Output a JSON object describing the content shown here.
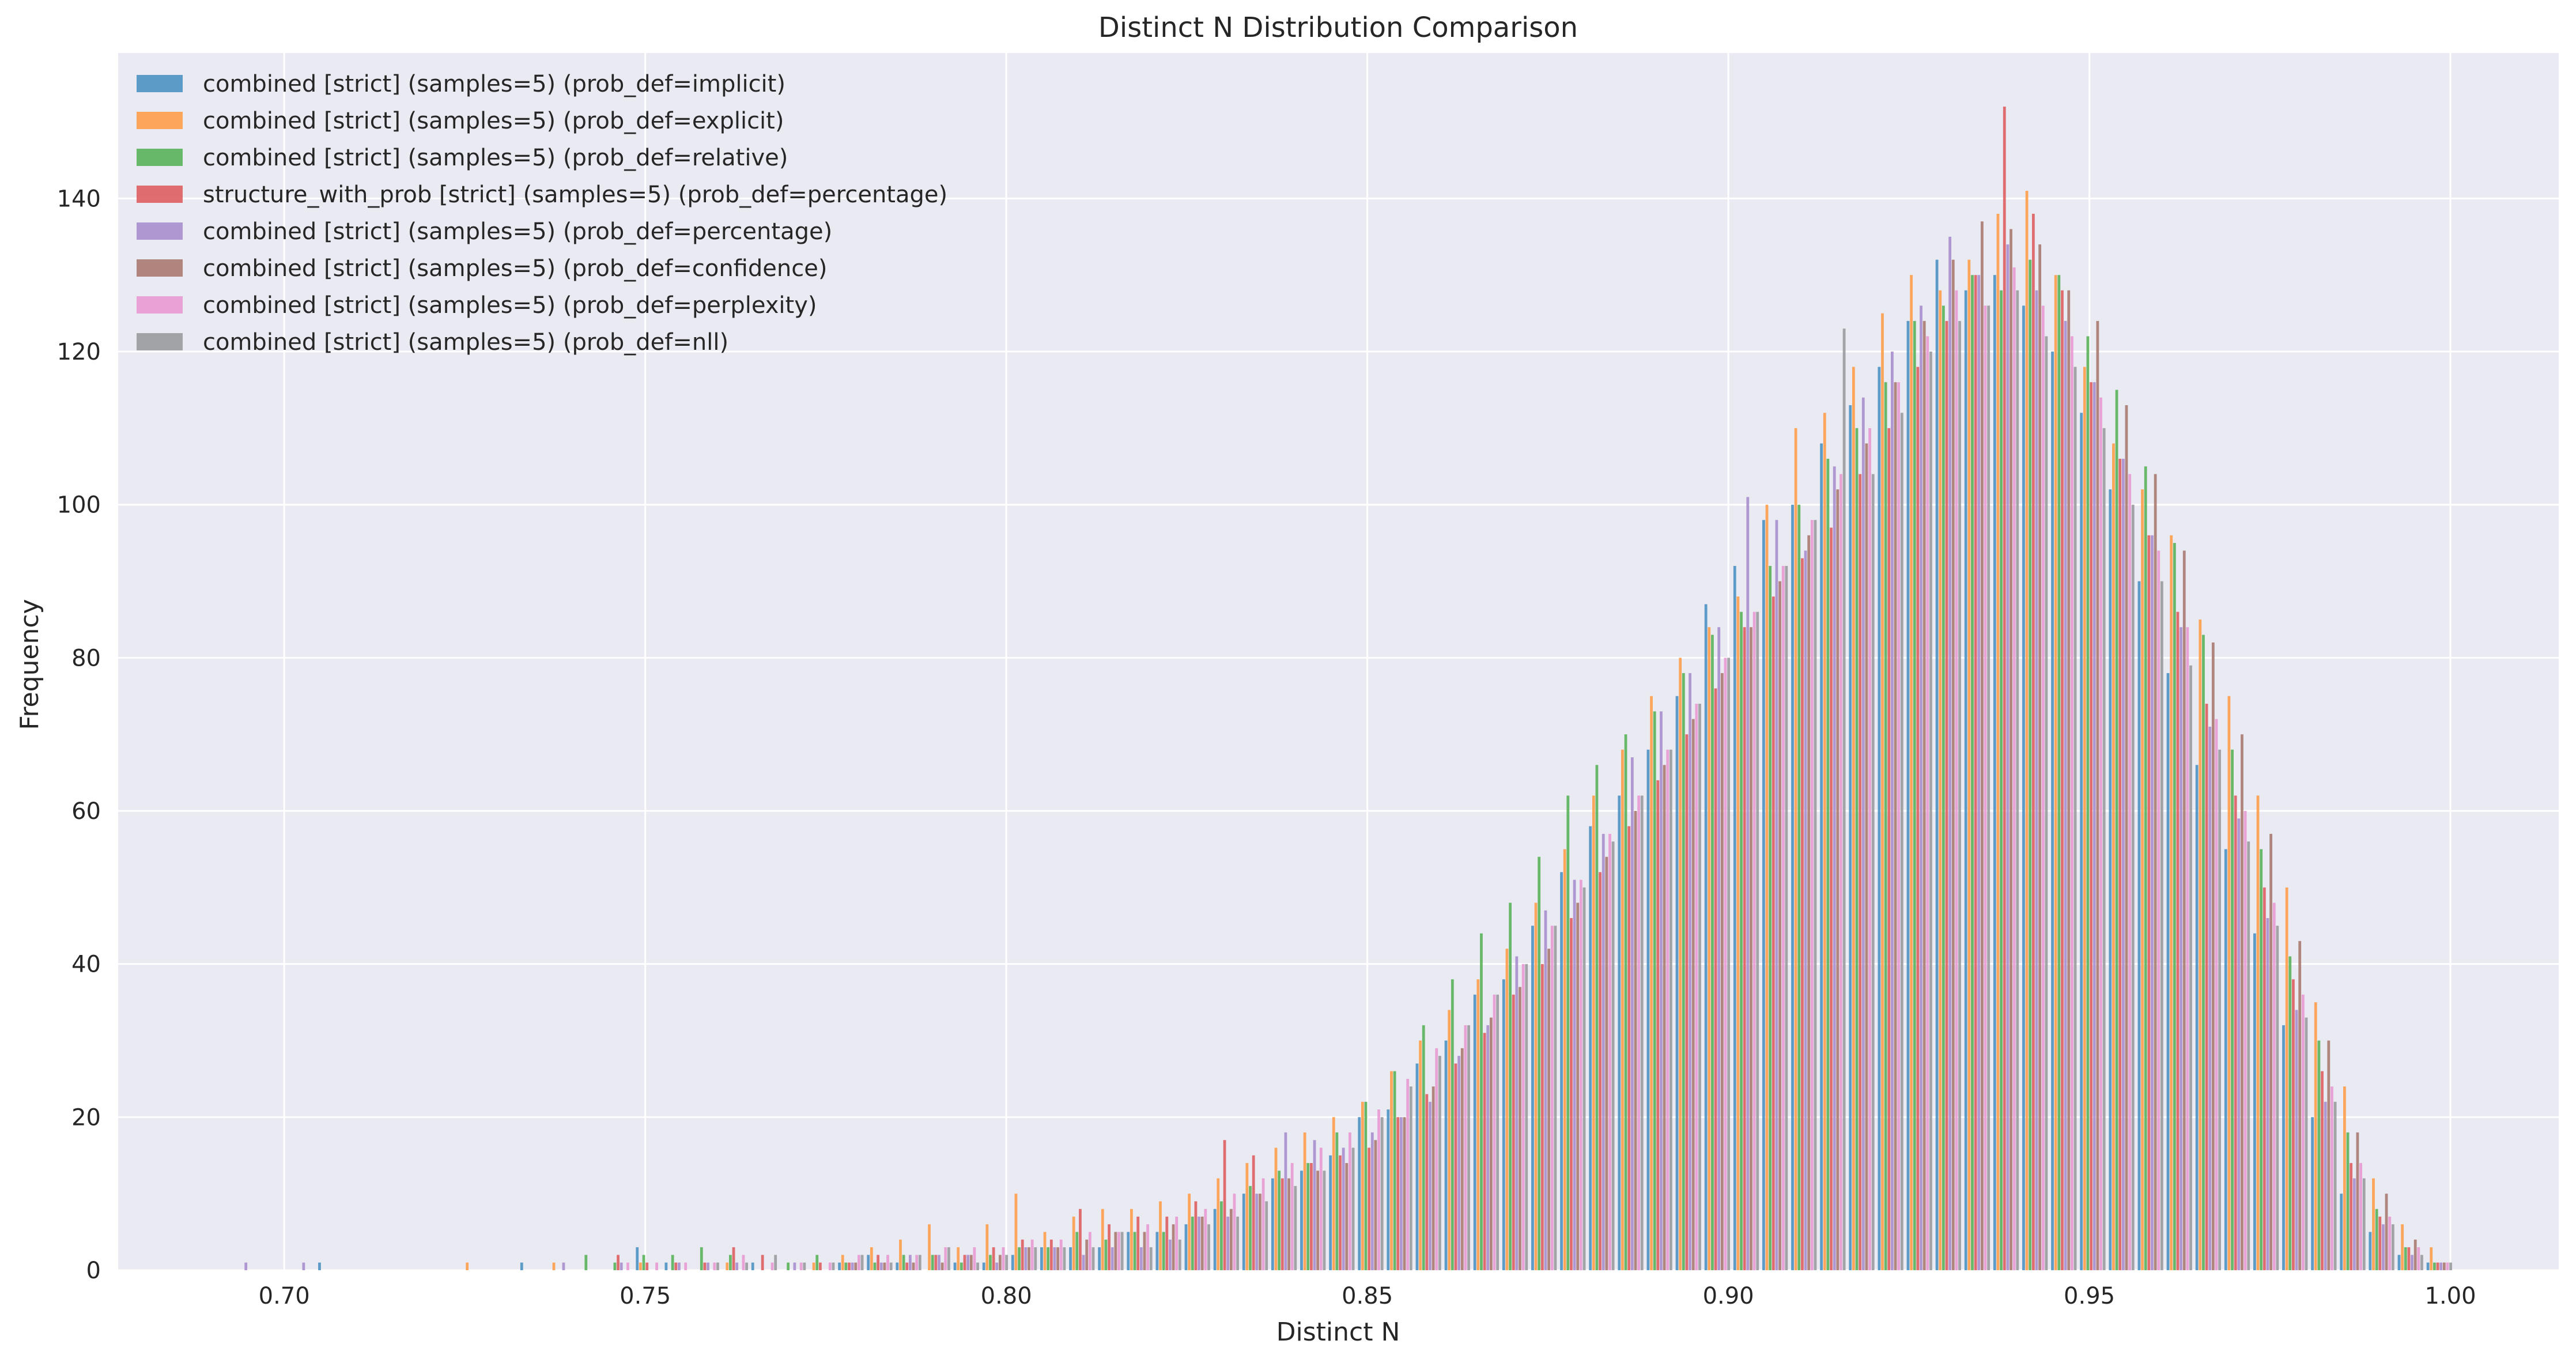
{
  "chart_data": {
    "type": "bar",
    "title": "Distinct N Distribution Comparison",
    "xlabel": "Distinct N",
    "ylabel": "Frequency",
    "xlim": [
      0.677,
      1.015
    ],
    "ylim": [
      0,
      159
    ],
    "xticks": [
      "0.70",
      "0.75",
      "0.80",
      "0.85",
      "0.90",
      "0.95",
      "1.00"
    ],
    "yticks": [
      "0",
      "20",
      "40",
      "60",
      "80",
      "100",
      "120",
      "140"
    ],
    "grid": true,
    "legend_position": "top-left",
    "bin_centers": [
      0.6945,
      0.6985,
      0.7025,
      0.7065,
      0.7105,
      0.7145,
      0.7185,
      0.7225,
      0.7265,
      0.7305,
      0.7345,
      0.7385,
      0.7425,
      0.7465,
      0.7505,
      0.7545,
      0.7585,
      0.7625,
      0.7665,
      0.7705,
      0.7745,
      0.7785,
      0.7825,
      0.7865,
      0.7905,
      0.7945,
      0.7985,
      0.8025,
      0.8065,
      0.8105,
      0.8145,
      0.8185,
      0.8225,
      0.8265,
      0.8305,
      0.8345,
      0.8385,
      0.8425,
      0.8465,
      0.8505,
      0.8545,
      0.8585,
      0.8625,
      0.8665,
      0.8705,
      0.8745,
      0.8785,
      0.8825,
      0.8865,
      0.8905,
      0.8945,
      0.8985,
      0.9025,
      0.9065,
      0.9105,
      0.9145,
      0.9185,
      0.9225,
      0.9265,
      0.9305,
      0.9345,
      0.9385,
      0.9425,
      0.9465,
      0.9505,
      0.9545,
      0.9585,
      0.9625,
      0.9665,
      0.9705,
      0.9745,
      0.9785,
      0.9825,
      0.9865,
      0.9905,
      0.9945,
      0.9985
    ],
    "bar_group_width": 0.0036,
    "series": [
      {
        "name": "combined [strict] (samples=5) (prob_def=implicit)",
        "color": "#4c92c3",
        "values": [
          0,
          0,
          0,
          1,
          0,
          0,
          0,
          0,
          0,
          0,
          1,
          0,
          0,
          0,
          3,
          1,
          0,
          0,
          1,
          0,
          0,
          1,
          2,
          1,
          0,
          1,
          1,
          2,
          3,
          3,
          3,
          5,
          5,
          6,
          8,
          10,
          12,
          13,
          15,
          20,
          21,
          27,
          30,
          36,
          38,
          45,
          52,
          58,
          62,
          68,
          75,
          87,
          92,
          98,
          100,
          108,
          113,
          118,
          124,
          132,
          128,
          130,
          126,
          120,
          112,
          102,
          90,
          78,
          66,
          55,
          44,
          32,
          20,
          10,
          5,
          2,
          1
        ]
      },
      {
        "name": "combined [strict] (samples=5) (prob_def=explicit)",
        "color": "#ff9f4a",
        "values": [
          0,
          0,
          0,
          0,
          0,
          0,
          0,
          0,
          1,
          0,
          0,
          1,
          0,
          0,
          1,
          0,
          0,
          1,
          0,
          0,
          1,
          2,
          3,
          4,
          6,
          3,
          6,
          10,
          5,
          7,
          8,
          8,
          9,
          10,
          12,
          14,
          16,
          18,
          20,
          22,
          26,
          30,
          34,
          38,
          42,
          48,
          55,
          62,
          68,
          75,
          80,
          84,
          88,
          100,
          110,
          112,
          118,
          125,
          130,
          128,
          132,
          138,
          141,
          130,
          118,
          108,
          102,
          96,
          85,
          75,
          62,
          50,
          35,
          24,
          12,
          6,
          3
        ]
      },
      {
        "name": "combined [strict] (samples=5) (prob_def=relative)",
        "color": "#5ab35a",
        "values": [
          0,
          0,
          0,
          0,
          0,
          0,
          0,
          0,
          0,
          0,
          0,
          0,
          2,
          1,
          2,
          2,
          3,
          2,
          0,
          1,
          2,
          1,
          1,
          2,
          2,
          1,
          2,
          3,
          3,
          5,
          4,
          5,
          5,
          7,
          9,
          11,
          13,
          14,
          18,
          22,
          26,
          32,
          38,
          44,
          48,
          54,
          62,
          66,
          70,
          73,
          78,
          83,
          86,
          92,
          100,
          106,
          110,
          116,
          124,
          126,
          130,
          128,
          132,
          130,
          122,
          115,
          105,
          95,
          83,
          68,
          55,
          41,
          30,
          18,
          8,
          3,
          1
        ]
      },
      {
        "name": "structure_with_prob [strict] (samples=5) (prob_def=percentage)",
        "color": "#de5f60",
        "values": [
          0,
          0,
          0,
          0,
          0,
          0,
          0,
          0,
          0,
          0,
          0,
          0,
          0,
          2,
          1,
          1,
          1,
          3,
          2,
          0,
          1,
          1,
          2,
          1,
          2,
          2,
          3,
          4,
          4,
          8,
          6,
          7,
          7,
          9,
          17,
          15,
          12,
          14,
          15,
          16,
          20,
          23,
          27,
          31,
          36,
          40,
          46,
          52,
          58,
          64,
          70,
          76,
          84,
          88,
          93,
          97,
          104,
          110,
          118,
          124,
          130,
          152,
          138,
          128,
          116,
          106,
          96,
          86,
          74,
          62,
          50,
          38,
          26,
          14,
          7,
          3,
          1
        ]
      },
      {
        "name": "combined [strict] (samples=5) (prob_def=percentage)",
        "color": "#a98fcd",
        "values": [
          1,
          0,
          1,
          0,
          0,
          0,
          0,
          0,
          0,
          0,
          0,
          1,
          0,
          1,
          0,
          1,
          1,
          1,
          0,
          1,
          0,
          1,
          1,
          2,
          2,
          2,
          1,
          3,
          3,
          2,
          3,
          3,
          4,
          7,
          7,
          10,
          18,
          17,
          16,
          18,
          20,
          22,
          28,
          32,
          41,
          47,
          51,
          57,
          67,
          73,
          78,
          84,
          101,
          98,
          94,
          105,
          114,
          120,
          126,
          135,
          130,
          134,
          128,
          124,
          116,
          106,
          96,
          84,
          71,
          59,
          46,
          34,
          22,
          12,
          6,
          2,
          1
        ]
      },
      {
        "name": "combined [strict] (samples=5) (prob_def=confidence)",
        "color": "#a87a70",
        "values": [
          0,
          0,
          0,
          0,
          0,
          0,
          0,
          0,
          0,
          0,
          0,
          0,
          0,
          0,
          0,
          0,
          0,
          0,
          0,
          0,
          0,
          1,
          1,
          1,
          1,
          2,
          2,
          3,
          3,
          4,
          5,
          5,
          6,
          7,
          8,
          10,
          12,
          13,
          14,
          17,
          20,
          24,
          29,
          33,
          37,
          42,
          48,
          54,
          60,
          66,
          72,
          78,
          84,
          90,
          96,
          102,
          108,
          116,
          124,
          132,
          137,
          136,
          134,
          128,
          124,
          113,
          104,
          94,
          82,
          70,
          57,
          43,
          30,
          18,
          10,
          4,
          1
        ]
      },
      {
        "name": "combined [strict] (samples=5) (prob_def=perplexity)",
        "color": "#e89ad3",
        "values": [
          0,
          0,
          0,
          0,
          0,
          0,
          0,
          0,
          0,
          0,
          0,
          0,
          0,
          1,
          1,
          1,
          1,
          2,
          1,
          1,
          1,
          2,
          2,
          2,
          3,
          3,
          3,
          4,
          4,
          5,
          5,
          6,
          7,
          8,
          10,
          12,
          14,
          16,
          18,
          21,
          25,
          29,
          32,
          36,
          40,
          45,
          51,
          57,
          62,
          68,
          74,
          80,
          86,
          92,
          98,
          104,
          110,
          116,
          122,
          128,
          126,
          131,
          126,
          122,
          114,
          104,
          94,
          84,
          72,
          60,
          48,
          36,
          24,
          14,
          7,
          3,
          1
        ]
      },
      {
        "name": "combined [strict] (samples=5) (prob_def=nll)",
        "color": "#999b9e",
        "values": [
          0,
          0,
          0,
          0,
          0,
          0,
          0,
          0,
          0,
          0,
          0,
          0,
          0,
          0,
          0,
          0,
          1,
          1,
          2,
          1,
          1,
          2,
          1,
          2,
          3,
          1,
          2,
          3,
          3,
          3,
          5,
          3,
          4,
          6,
          7,
          9,
          11,
          13,
          16,
          20,
          24,
          28,
          32,
          36,
          40,
          45,
          50,
          56,
          62,
          68,
          74,
          80,
          86,
          92,
          98,
          123,
          104,
          112,
          120,
          124,
          126,
          128,
          122,
          118,
          110,
          100,
          90,
          79,
          68,
          56,
          45,
          33,
          22,
          12,
          6,
          2,
          1
        ]
      }
    ]
  }
}
